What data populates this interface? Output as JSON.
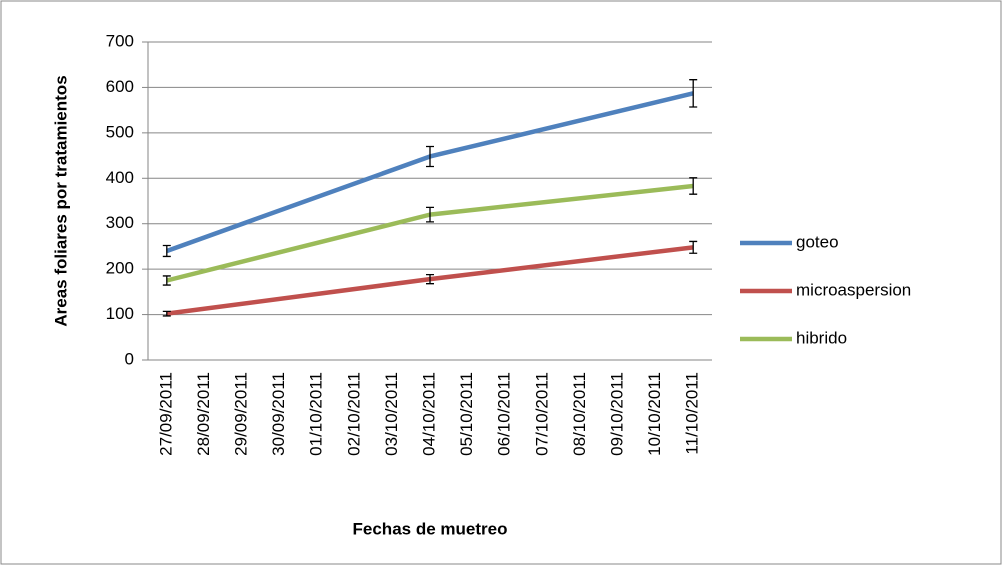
{
  "chart_data": {
    "type": "line",
    "ylabel": "Areas foliares por tratamientos",
    "xlabel": "Fechas de muetreo",
    "xticks": [
      "27/09/2011",
      "28/09/2011",
      "29/09/2011",
      "30/09/2011",
      "01/10/2011",
      "02/10/2011",
      "03/10/2011",
      "04/10/2011",
      "05/10/2011",
      "06/10/2011",
      "07/10/2011",
      "08/10/2011",
      "09/10/2011",
      "10/10/2011",
      "11/10/2011"
    ],
    "ylim": [
      0,
      700
    ],
    "yticks": [
      0,
      100,
      200,
      300,
      400,
      500,
      600,
      700
    ],
    "grid": true,
    "legend": "right",
    "series": [
      {
        "name": "goteo",
        "color": "#4f81bd",
        "x": [
          "27/09/2011",
          "04/10/2011",
          "11/10/2011"
        ],
        "values": [
          240,
          448,
          587
        ],
        "errors": [
          12,
          22,
          30
        ]
      },
      {
        "name": "microaspersion",
        "color": "#c0504d",
        "x": [
          "27/09/2011",
          "04/10/2011",
          "11/10/2011"
        ],
        "values": [
          102,
          178,
          248
        ],
        "errors": [
          5,
          10,
          13
        ]
      },
      {
        "name": "hibrido",
        "color": "#9bbb59",
        "x": [
          "27/09/2011",
          "04/10/2011",
          "11/10/2011"
        ],
        "values": [
          175,
          320,
          383
        ],
        "errors": [
          10,
          16,
          18
        ]
      }
    ]
  }
}
